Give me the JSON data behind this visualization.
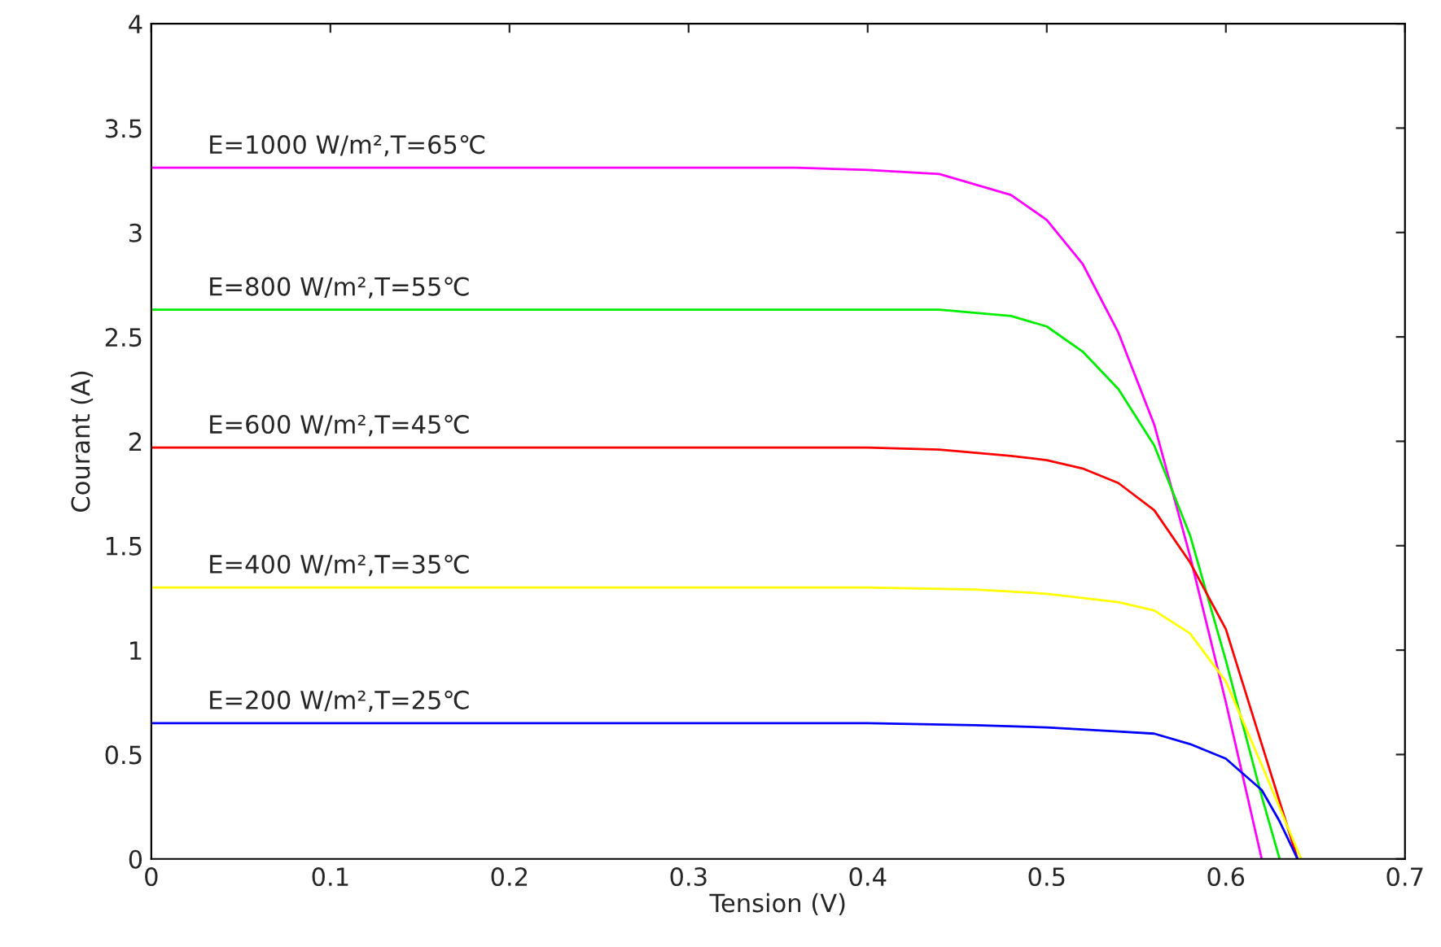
{
  "chart_data": {
    "type": "line",
    "xlabel": "Tension (V)",
    "ylabel": "Courant (A)",
    "xlim": [
      0,
      0.7
    ],
    "xticks": [
      0,
      0.1,
      0.2,
      0.3,
      0.4,
      0.5,
      0.6,
      0.7
    ],
    "ylim": [
      0,
      4
    ],
    "yticks": [
      0,
      0.5,
      1,
      1.5,
      2,
      2.5,
      3,
      3.5,
      4
    ],
    "grid": false,
    "legend": false,
    "marker": "none",
    "line_style": "solid",
    "series": [
      {
        "name": "E=1000 W/m²,T=65℃",
        "color": "#ff00ff",
        "x": [
          0,
          0.1,
          0.2,
          0.3,
          0.36,
          0.4,
          0.44,
          0.48,
          0.5,
          0.52,
          0.54,
          0.56,
          0.58,
          0.6,
          0.62
        ],
        "values": [
          3.31,
          3.31,
          3.31,
          3.31,
          3.31,
          3.3,
          3.28,
          3.18,
          3.06,
          2.85,
          2.52,
          2.08,
          1.45,
          0.75,
          0
        ]
      },
      {
        "name": "E=800 W/m²,T=55℃",
        "color": "#00ee00",
        "x": [
          0,
          0.1,
          0.2,
          0.3,
          0.4,
          0.44,
          0.48,
          0.5,
          0.52,
          0.54,
          0.56,
          0.58,
          0.6,
          0.62,
          0.63
        ],
        "values": [
          2.63,
          2.63,
          2.63,
          2.63,
          2.63,
          2.63,
          2.6,
          2.55,
          2.43,
          2.25,
          1.98,
          1.55,
          0.95,
          0.3,
          0
        ]
      },
      {
        "name": "E=600 W/m²,T=45℃",
        "color": "#ff0000",
        "x": [
          0,
          0.1,
          0.2,
          0.3,
          0.4,
          0.44,
          0.48,
          0.5,
          0.52,
          0.54,
          0.56,
          0.58,
          0.6,
          0.62,
          0.64
        ],
        "values": [
          1.97,
          1.97,
          1.97,
          1.97,
          1.97,
          1.96,
          1.93,
          1.91,
          1.87,
          1.8,
          1.67,
          1.42,
          1.1,
          0.55,
          0
        ]
      },
      {
        "name": "E=400 W/m²,T=35℃",
        "color": "#ffff00",
        "x": [
          0,
          0.1,
          0.2,
          0.3,
          0.4,
          0.46,
          0.5,
          0.54,
          0.56,
          0.58,
          0.6,
          0.62,
          0.642
        ],
        "values": [
          1.3,
          1.3,
          1.3,
          1.3,
          1.3,
          1.29,
          1.27,
          1.23,
          1.19,
          1.08,
          0.85,
          0.45,
          0
        ]
      },
      {
        "name": "E=200 W/m²,T=25℃",
        "color": "#0000ff",
        "x": [
          0,
          0.1,
          0.2,
          0.3,
          0.4,
          0.46,
          0.5,
          0.54,
          0.56,
          0.58,
          0.6,
          0.62,
          0.63,
          0.64
        ],
        "values": [
          0.65,
          0.65,
          0.65,
          0.65,
          0.65,
          0.64,
          0.63,
          0.61,
          0.6,
          0.55,
          0.48,
          0.33,
          0.18,
          0
        ]
      }
    ]
  }
}
